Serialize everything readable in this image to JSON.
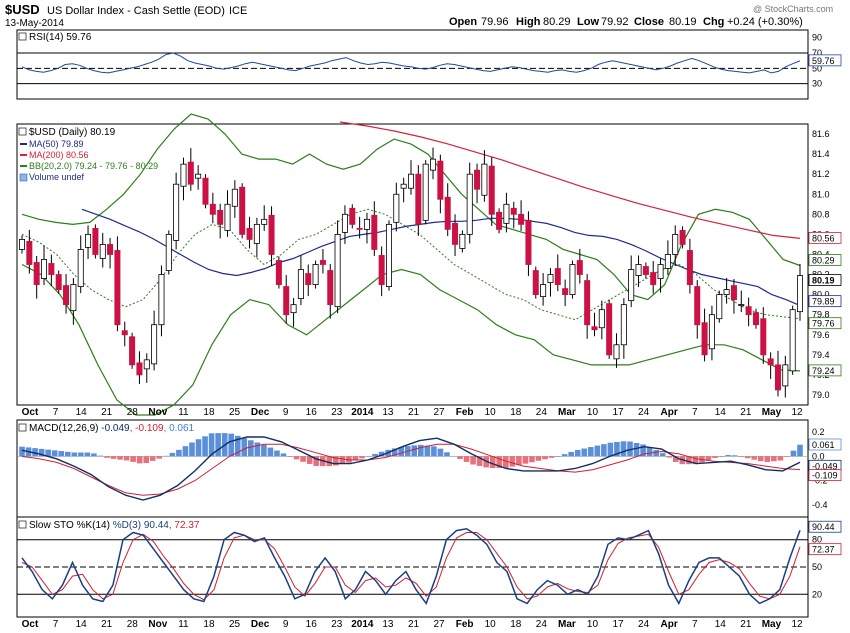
{
  "header": {
    "symbol": "$USD",
    "name": "US Dollar Index - Cash Settle (EOD)",
    "exchange": "ICE",
    "date": "13-May-2014",
    "open_label": "Open",
    "open": "79.96",
    "high_label": "High",
    "high": "80.29",
    "low_label": "Low",
    "low": "79.92",
    "close_label": "Close",
    "close": "80.19",
    "chg_label": "Chg",
    "chg": "+0.24 (+0.30%)",
    "watermark": "@ StockCharts.com"
  },
  "colors": {
    "up": "#ffffff",
    "down": "#cc1144",
    "ma50": "#1f2a8c",
    "ma200": "#d8203a",
    "bb": "#2e7d1a",
    "macd": "#0f2f66",
    "signal": "#d02030",
    "hist_pos": "#5b8fd9",
    "hist_neg": "#e8707a",
    "sto_k": "#1a3f7f",
    "sto_d": "#d02030"
  },
  "chart_data": [
    {
      "type": "line",
      "panel": "RSI",
      "label": "RSI(14) 59.76",
      "series": [
        {
          "name": "RSI(14)",
          "last": 59.76,
          "values": [
            52,
            48,
            46,
            45,
            47,
            50,
            55,
            56,
            54,
            50,
            47,
            45,
            44,
            46,
            48,
            50,
            52,
            55,
            58,
            62,
            68,
            70,
            66,
            60,
            57,
            55,
            53,
            50,
            49,
            51,
            53,
            56,
            58,
            56,
            54,
            52,
            50,
            48,
            47,
            50,
            53,
            55,
            57,
            60,
            62,
            64,
            60,
            57,
            55,
            56,
            58,
            57,
            55,
            53,
            52,
            50,
            49,
            51,
            54,
            56,
            55,
            53,
            51,
            49,
            47,
            46,
            48,
            50,
            52,
            51,
            49,
            47,
            46,
            45,
            47,
            48,
            46,
            45,
            47,
            50,
            55,
            58,
            60,
            58,
            56,
            54,
            52,
            50,
            48,
            50,
            53,
            57,
            60,
            63,
            60,
            56,
            52,
            49,
            47,
            46,
            45,
            44,
            46,
            48,
            44,
            46,
            52,
            56,
            59.76
          ]
        }
      ],
      "ylim": [
        10,
        100
      ],
      "yticks": [
        90,
        70,
        50,
        30
      ],
      "hlines": [
        70,
        50,
        30
      ],
      "right_labels": [
        "59.76"
      ]
    },
    {
      "type": "candlestick",
      "panel": "price",
      "label": "$USD (Daily) 80.19",
      "legend": [
        "MA(50) 79.89",
        "MA(200) 80.56",
        "BB(20,2.0) 79.24 - 79.76 - 80.29",
        "Volume undef"
      ],
      "ylim": [
        78.9,
        81.7
      ],
      "yticks": [
        "81.6",
        "81.4",
        "81.2",
        "81.0",
        "80.8",
        "80.6",
        "80.4",
        "80.2",
        "80.0",
        "79.8",
        "79.6",
        "79.4",
        "79.2",
        "79.0"
      ],
      "right_labels": {
        "ma200": "80.56",
        "bb_upper": "80.29",
        "close": "80.19",
        "ma50": "79.89",
        "bb_mid": "79.76",
        "bb_lower": "79.24"
      },
      "close": [
        80.55,
        80.3,
        80.1,
        80.35,
        80.2,
        80.05,
        79.9,
        80.1,
        80.45,
        80.6,
        80.4,
        80.5,
        80.4,
        79.7,
        79.6,
        79.3,
        79.2,
        79.35,
        79.7,
        80.2,
        80.6,
        81.1,
        81.3,
        81.1,
        81.2,
        80.9,
        80.8,
        80.7,
        80.9,
        81.05,
        80.6,
        80.55,
        80.7,
        80.75,
        80.4,
        80.1,
        79.8,
        79.9,
        80.25,
        80.1,
        80.3,
        80.3,
        79.9,
        80.6,
        80.8,
        80.7,
        80.65,
        80.75,
        80.45,
        80.1,
        80.7,
        81.0,
        81.1,
        81.2,
        80.7,
        81.3,
        81.35,
        80.95,
        80.65,
        80.5,
        80.6,
        81.2,
        81.05,
        81.3,
        80.8,
        80.65,
        80.9,
        80.8,
        80.7,
        80.3,
        80.0,
        80.1,
        80.2,
        80.1,
        80.0,
        80.3,
        80.2,
        79.7,
        79.65,
        79.85,
        79.4,
        79.5,
        79.9,
        80.25,
        80.3,
        80.2,
        80.1,
        80.3,
        80.4,
        80.6,
        80.5,
        80.1,
        79.7,
        79.4,
        79.8,
        80.0,
        80.05,
        79.95,
        79.9,
        79.8,
        79.7,
        79.4,
        79.3,
        79.05,
        79.3,
        79.85,
        80.19
      ],
      "series": [
        {
          "name": "MA(50)",
          "values": [
            80.85,
            80.8,
            80.75,
            80.69,
            80.63,
            80.56,
            80.48,
            80.4,
            80.32,
            80.25,
            80.21,
            80.19,
            80.22,
            80.26,
            80.32,
            80.36,
            80.42,
            80.48,
            80.53,
            80.58,
            80.6,
            80.62,
            80.65,
            80.68,
            80.7,
            80.72,
            80.73,
            80.73,
            80.74,
            80.76,
            80.76,
            80.75,
            80.73,
            80.71,
            80.67,
            80.62,
            80.59,
            80.58,
            80.55,
            80.5,
            80.44,
            80.37,
            80.31,
            80.25,
            80.2,
            80.17,
            80.14,
            80.11,
            80.08,
            80.0,
            79.95,
            79.89
          ]
        },
        {
          "name": "MA(200)",
          "values": [
            81.72,
            81.68,
            81.63,
            81.57,
            81.5,
            81.42,
            81.34,
            81.25,
            81.16,
            81.07,
            80.99,
            80.91,
            80.84,
            80.77,
            80.71,
            80.65,
            80.59,
            80.56
          ]
        },
        {
          "name": "BB upper",
          "values": [
            80.8,
            80.75,
            80.72,
            80.7,
            80.72,
            80.85,
            81.0,
            81.2,
            81.45,
            81.65,
            81.8,
            81.75,
            81.6,
            81.4,
            81.35,
            81.35,
            81.3,
            81.4,
            81.3,
            81.25,
            81.3,
            81.45,
            81.55,
            81.5,
            81.4,
            81.2,
            81.0,
            80.85,
            80.7,
            80.65,
            80.6,
            80.55,
            80.45,
            80.4,
            80.35,
            80.2,
            80.0,
            79.95,
            80.1,
            80.5,
            80.8,
            80.85,
            80.82,
            80.75,
            80.55,
            80.35,
            80.29
          ]
        },
        {
          "name": "BB mid",
          "values": [
            80.6,
            80.52,
            80.4,
            80.2,
            80.05,
            79.95,
            79.88,
            79.95,
            80.15,
            80.4,
            80.6,
            80.7,
            80.65,
            80.45,
            80.3,
            80.4,
            80.55,
            80.6,
            80.7,
            80.8,
            80.85,
            80.8,
            80.7,
            80.6,
            80.45,
            80.3,
            80.2,
            80.1,
            80.0,
            79.95,
            79.85,
            79.8,
            79.75,
            79.85,
            79.95,
            80.05,
            80.15,
            80.25,
            80.3,
            80.2,
            80.05,
            79.95,
            79.85,
            79.8,
            79.78,
            79.76
          ]
        },
        {
          "name": "BB lower",
          "values": [
            80.3,
            80.2,
            80.0,
            79.7,
            79.3,
            78.95,
            78.8,
            78.8,
            78.9,
            79.1,
            79.5,
            79.8,
            79.95,
            79.9,
            79.7,
            79.6,
            79.75,
            79.9,
            80.05,
            80.2,
            80.25,
            80.2,
            80.05,
            79.95,
            79.85,
            79.7,
            79.6,
            79.55,
            79.4,
            79.35,
            79.3,
            79.3,
            79.3,
            79.35,
            79.4,
            79.45,
            79.5,
            79.5,
            79.45,
            79.35,
            79.25,
            79.24
          ]
        }
      ]
    },
    {
      "type": "line",
      "panel": "MACD",
      "label_prefix": "MACD(12,26,9) ",
      "label_macd": "-0.049",
      "label_signal": ", -0.109",
      "label_hist": ", 0.061",
      "ylim": [
        -0.5,
        0.3
      ],
      "yticks": [
        "0.2",
        "0.0",
        "-0.2",
        "-0.4"
      ],
      "right_labels": [
        "0.061",
        "-0.049",
        "-0.109"
      ],
      "series": [
        {
          "name": "MACD",
          "values": [
            0.05,
            0.02,
            -0.02,
            -0.08,
            -0.15,
            -0.25,
            -0.32,
            -0.36,
            -0.32,
            -0.24,
            -0.12,
            0.02,
            0.12,
            0.16,
            0.16,
            0.12,
            0.05,
            -0.02,
            -0.06,
            -0.06,
            -0.03,
            0.02,
            0.08,
            0.13,
            0.15,
            0.1,
            0.02,
            -0.05,
            -0.1,
            -0.12,
            -0.12,
            -0.12,
            -0.1,
            -0.06,
            0.0,
            0.05,
            0.08,
            0.06,
            -0.02,
            -0.06,
            -0.05,
            -0.04,
            -0.07,
            -0.11,
            -0.12,
            -0.049
          ]
        },
        {
          "name": "Signal",
          "values": [
            0.0,
            -0.02,
            -0.05,
            -0.1,
            -0.17,
            -0.24,
            -0.3,
            -0.32,
            -0.31,
            -0.27,
            -0.2,
            -0.1,
            0.0,
            0.07,
            0.1,
            0.1,
            0.07,
            0.03,
            -0.01,
            -0.03,
            -0.03,
            -0.01,
            0.03,
            0.07,
            0.1,
            0.1,
            0.06,
            0.01,
            -0.04,
            -0.08,
            -0.1,
            -0.12,
            -0.13,
            -0.11,
            -0.07,
            -0.03,
            0.02,
            0.04,
            0.02,
            -0.02,
            -0.04,
            -0.05,
            -0.06,
            -0.08,
            -0.1,
            -0.109
          ]
        }
      ]
    },
    {
      "type": "line",
      "panel": "STO",
      "label_prefix": "Slow STO %K(14) ",
      "label_k": "%D(3) 90.44",
      "label_d": ", 72.37",
      "ylim": [
        -5,
        105
      ],
      "yticks": [
        "80",
        "50",
        "20"
      ],
      "hlines": [
        80,
        50,
        20
      ],
      "right_labels": [
        "90.44",
        "72.37"
      ],
      "series": [
        {
          "name": "%K",
          "values": [
            60,
            45,
            25,
            15,
            30,
            55,
            30,
            15,
            12,
            30,
            80,
            88,
            85,
            70,
            55,
            40,
            25,
            15,
            12,
            40,
            80,
            88,
            85,
            78,
            82,
            60,
            40,
            15,
            20,
            45,
            60,
            45,
            15,
            25,
            45,
            35,
            20,
            35,
            45,
            25,
            10,
            40,
            80,
            90,
            92,
            85,
            75,
            55,
            45,
            15,
            10,
            25,
            35,
            30,
            20,
            25,
            20,
            40,
            75,
            82,
            80,
            85,
            90,
            65,
            30,
            10,
            35,
            55,
            60,
            60,
            50,
            40,
            20,
            10,
            15,
            25,
            60,
            90.44
          ]
        },
        {
          "name": "%D",
          "values": [
            55,
            50,
            35,
            20,
            25,
            40,
            42,
            25,
            15,
            20,
            55,
            80,
            86,
            78,
            62,
            48,
            32,
            20,
            14,
            25,
            60,
            82,
            85,
            80,
            80,
            70,
            50,
            28,
            18,
            32,
            50,
            50,
            30,
            22,
            35,
            38,
            28,
            30,
            38,
            32,
            18,
            28,
            60,
            82,
            88,
            88,
            80,
            65,
            50,
            28,
            15,
            18,
            28,
            32,
            26,
            23,
            22,
            30,
            58,
            76,
            82,
            84,
            86,
            72,
            45,
            20,
            25,
            42,
            55,
            58,
            55,
            48,
            32,
            18,
            15,
            20,
            40,
            72.37
          ]
        }
      ]
    }
  ],
  "xaxis": {
    "labels": [
      "Oct",
      "7",
      "14",
      "21",
      "28",
      "Nov",
      "11",
      "18",
      "25",
      "Dec",
      "9",
      "16",
      "23",
      "2014",
      "13",
      "21",
      "27",
      "Feb",
      "10",
      "18",
      "24",
      "Mar",
      "10",
      "17",
      "24",
      "Apr",
      "7",
      "14",
      "21",
      "May",
      "12"
    ],
    "bold": [
      "Oct",
      "Nov",
      "Dec",
      "2014",
      "Feb",
      "Mar",
      "Apr",
      "May"
    ]
  }
}
